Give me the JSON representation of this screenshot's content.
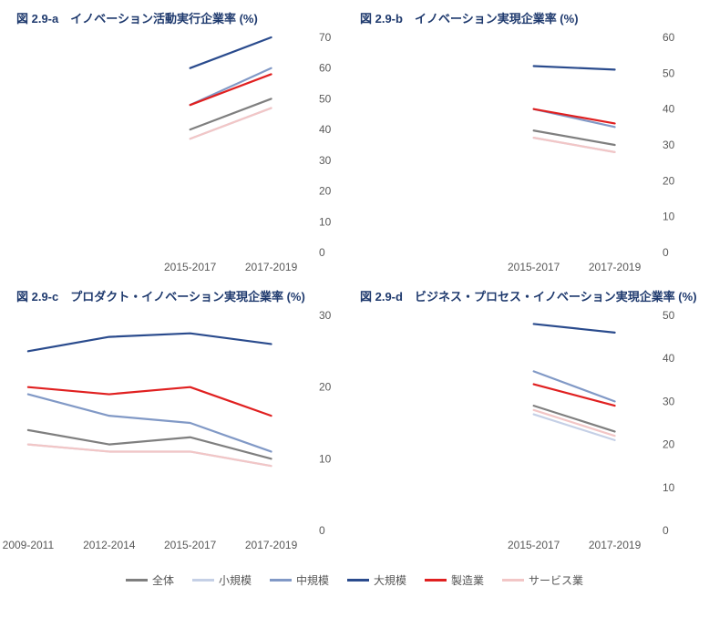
{
  "colors": {
    "title": "#1f3a6e",
    "axis_text": "#595959",
    "background": "#ffffff",
    "series": {
      "all": "#7f7f7f",
      "small": "#c5d0e6",
      "medium": "#8199c6",
      "large": "#2a4b8d",
      "manufacturing": "#e02020",
      "service": "#f2c6c6"
    }
  },
  "line_width": 2.2,
  "font": {
    "title_size": 13,
    "tick_size": 12,
    "legend_size": 12
  },
  "legend": [
    {
      "key": "all",
      "label": "全体"
    },
    {
      "key": "small",
      "label": "小規模"
    },
    {
      "key": "medium",
      "label": "中規模"
    },
    {
      "key": "large",
      "label": "大規模"
    },
    {
      "key": "manufacturing",
      "label": "製造業"
    },
    {
      "key": "service",
      "label": "サービス業"
    }
  ],
  "panels": [
    {
      "id": "a",
      "title": "図 2.9-a　イノベーション活動実行企業率 (%)",
      "x_labels": [
        "2015-2017",
        "2017-2019"
      ],
      "x_count": 4,
      "x_data_start": 2,
      "ylim": [
        0,
        70
      ],
      "ytick_step": 10,
      "series": {
        "all": [
          null,
          null,
          40,
          50
        ],
        "small": [
          null,
          null,
          37,
          47
        ],
        "medium": [
          null,
          null,
          48,
          60
        ],
        "large": [
          null,
          null,
          60,
          70
        ],
        "manufacturing": [
          null,
          null,
          48,
          58
        ],
        "service": [
          null,
          null,
          37,
          47
        ]
      }
    },
    {
      "id": "b",
      "title": "図 2.9-b　イノベーション実現企業率 (%)",
      "x_labels": [
        "2015-2017",
        "2017-2019"
      ],
      "x_count": 4,
      "x_data_start": 2,
      "ylim": [
        0,
        60
      ],
      "ytick_step": 10,
      "series": {
        "all": [
          null,
          null,
          34,
          30
        ],
        "small": [
          null,
          null,
          32,
          28
        ],
        "medium": [
          null,
          null,
          40,
          35
        ],
        "large": [
          null,
          null,
          52,
          51
        ],
        "manufacturing": [
          null,
          null,
          40,
          36
        ],
        "service": [
          null,
          null,
          32,
          28
        ]
      }
    },
    {
      "id": "c",
      "title": "図 2.9-c　プロダクト・イノベーション実現企業率 (%)",
      "x_labels": [
        "2009-2011",
        "2012-2014",
        "2015-2017",
        "2017-2019"
      ],
      "x_count": 4,
      "x_data_start": 0,
      "ylim": [
        0,
        30
      ],
      "ytick_step": 10,
      "series": {
        "all": [
          14,
          12,
          13,
          10
        ],
        "small": [
          12,
          11,
          11,
          9
        ],
        "medium": [
          19,
          16,
          15,
          11
        ],
        "large": [
          25,
          27,
          27.5,
          26
        ],
        "manufacturing": [
          20,
          19,
          20,
          16
        ],
        "service": [
          12,
          11,
          11,
          9
        ]
      }
    },
    {
      "id": "d",
      "title": "図 2.9-d　ビジネス・プロセス・イノベーション実現企業率 (%)",
      "x_labels": [
        "2015-2017",
        "2017-2019"
      ],
      "x_count": 4,
      "x_data_start": 2,
      "ylim": [
        0,
        50
      ],
      "ytick_step": 10,
      "series": {
        "all": [
          null,
          null,
          29,
          23
        ],
        "small": [
          null,
          null,
          27,
          21
        ],
        "medium": [
          null,
          null,
          37,
          30
        ],
        "large": [
          null,
          null,
          48,
          46
        ],
        "manufacturing": [
          null,
          null,
          34,
          29
        ],
        "service": [
          null,
          null,
          28,
          22
        ]
      }
    }
  ]
}
